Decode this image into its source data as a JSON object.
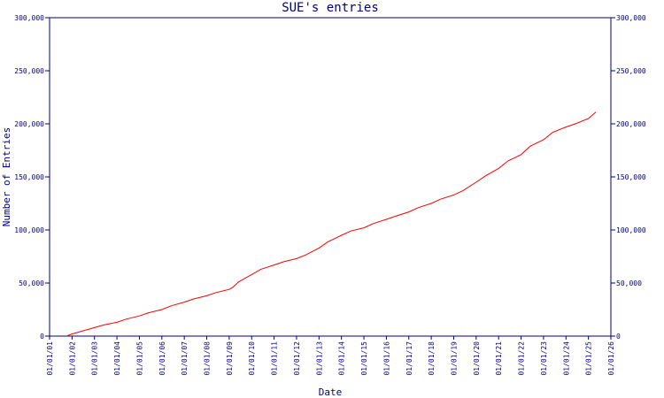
{
  "chart_data": {
    "type": "line",
    "title": "SUE's entries",
    "xlabel": "Date",
    "ylabel": "Number of Entries",
    "ylim": [
      0,
      300000
    ],
    "y_ticks": [
      0,
      50000,
      100000,
      150000,
      200000,
      250000,
      300000
    ],
    "y_tick_labels": [
      "0",
      "50,000",
      "100,000",
      "150,000",
      "200,000",
      "250,000",
      "300,000"
    ],
    "x_tick_labels": [
      "01/01/01",
      "01/01/02",
      "01/01/03",
      "01/01/04",
      "01/01/05",
      "01/01/06",
      "01/01/07",
      "01/01/08",
      "01/01/09",
      "01/01/10",
      "01/01/11",
      "01/01/12",
      "01/01/13",
      "01/01/14",
      "01/01/15",
      "01/01/16",
      "01/01/17",
      "01/01/18",
      "01/01/19",
      "01/01/20",
      "01/01/21",
      "01/01/22",
      "01/01/23",
      "01/01/24",
      "01/01/25",
      "01/01/26"
    ],
    "xlim": [
      "2001-01-01",
      "2026-01-01"
    ],
    "grid": false,
    "colors": {
      "axis": "#000080",
      "line": "#ff0000"
    },
    "series": [
      {
        "x": [
          "2001-10-01",
          "2002-01-01",
          "2002-06-01",
          "2003-01-01",
          "2003-06-01",
          "2004-01-01",
          "2004-06-01",
          "2005-01-01",
          "2005-06-01",
          "2006-01-01",
          "2006-06-01",
          "2007-01-01",
          "2007-06-01",
          "2008-01-01",
          "2008-06-01",
          "2009-01-01",
          "2009-03-01",
          "2009-06-01",
          "2010-01-01",
          "2010-06-01",
          "2011-01-01",
          "2011-06-01",
          "2012-01-01",
          "2012-06-01",
          "2013-01-01",
          "2013-06-01",
          "2014-01-01",
          "2014-06-01",
          "2015-01-01",
          "2015-06-01",
          "2016-01-01",
          "2016-06-01",
          "2017-01-01",
          "2017-06-01",
          "2018-01-01",
          "2018-06-01",
          "2019-01-01",
          "2019-06-01",
          "2020-01-01",
          "2020-06-01",
          "2021-01-01",
          "2021-06-01",
          "2022-01-01",
          "2022-06-01",
          "2023-01-01",
          "2023-06-01",
          "2024-01-01",
          "2024-06-01",
          "2025-01-01",
          "2025-05-01"
        ],
        "y": [
          0,
          2000,
          4500,
          8000,
          10500,
          13000,
          16000,
          19000,
          22000,
          25000,
          28500,
          32000,
          35000,
          38000,
          41000,
          44000,
          46000,
          51000,
          58000,
          63000,
          67000,
          70000,
          73000,
          76500,
          83000,
          89000,
          95000,
          99000,
          102000,
          106000,
          110000,
          113000,
          117000,
          121000,
          125000,
          129000,
          133000,
          137000,
          145000,
          151000,
          158000,
          165000,
          171000,
          179000,
          185000,
          192000,
          197000,
          200000,
          205000,
          211000
        ]
      }
    ]
  }
}
